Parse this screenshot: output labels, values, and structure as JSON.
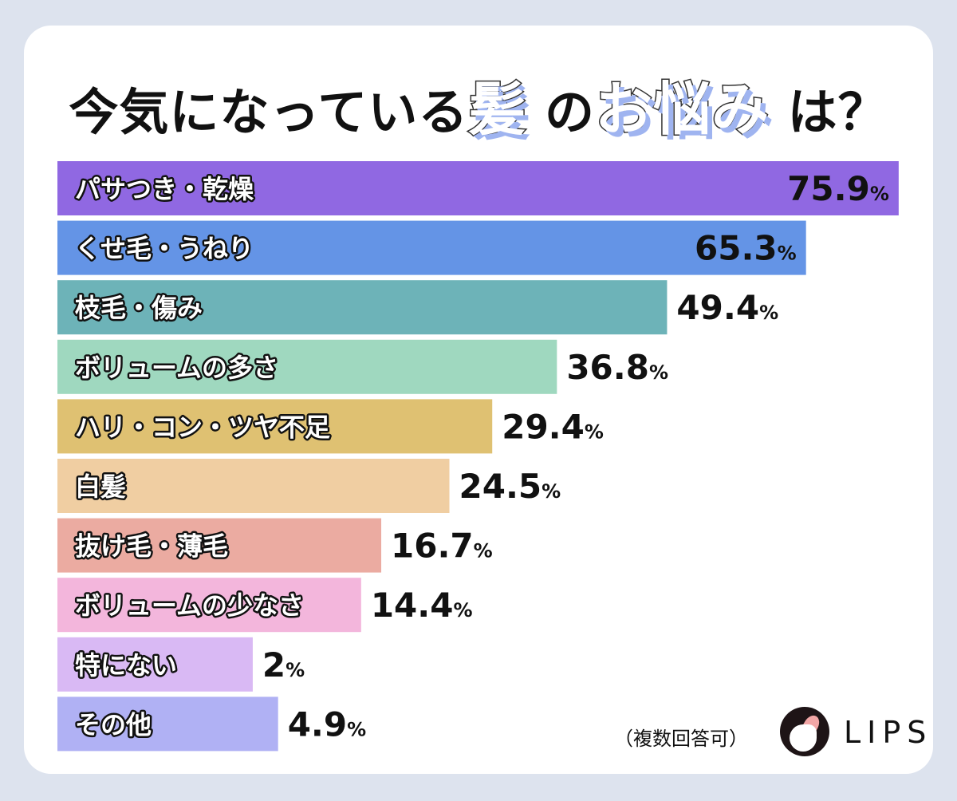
{
  "title": {
    "part1": "今気になっている",
    "em1": "髪",
    "part2": "の",
    "em2": "お悩み",
    "part3": "は？"
  },
  "note": "（複数回答可）",
  "logo": {
    "text": "LIPS"
  },
  "chart_data": {
    "type": "bar",
    "orientation": "horizontal",
    "categories": [
      "パサつき・乾燥",
      "くせ毛・うねり",
      "枝毛・傷み",
      "ボリュームの多さ",
      "ハリ・コン・ツヤ不足",
      "白髪",
      "抜け毛・薄毛",
      "ボリュームの少なさ",
      "特にない",
      "その他"
    ],
    "values": [
      75.9,
      65.3,
      49.4,
      36.8,
      29.4,
      24.5,
      16.7,
      14.4,
      2,
      4.9
    ],
    "value_labels": [
      "75.9",
      "65.3",
      "49.4",
      "36.8",
      "29.4",
      "24.5",
      "16.7",
      "14.4",
      "2",
      "4.9"
    ],
    "unit": "%",
    "colors": [
      "#9068e2",
      "#6494e6",
      "#6db3b8",
      "#9fd8bf",
      "#dfc172",
      "#f0cea2",
      "#ebaba1",
      "#f3b6dc",
      "#d9b9f4",
      "#b0b1f4"
    ],
    "grid": false
  }
}
